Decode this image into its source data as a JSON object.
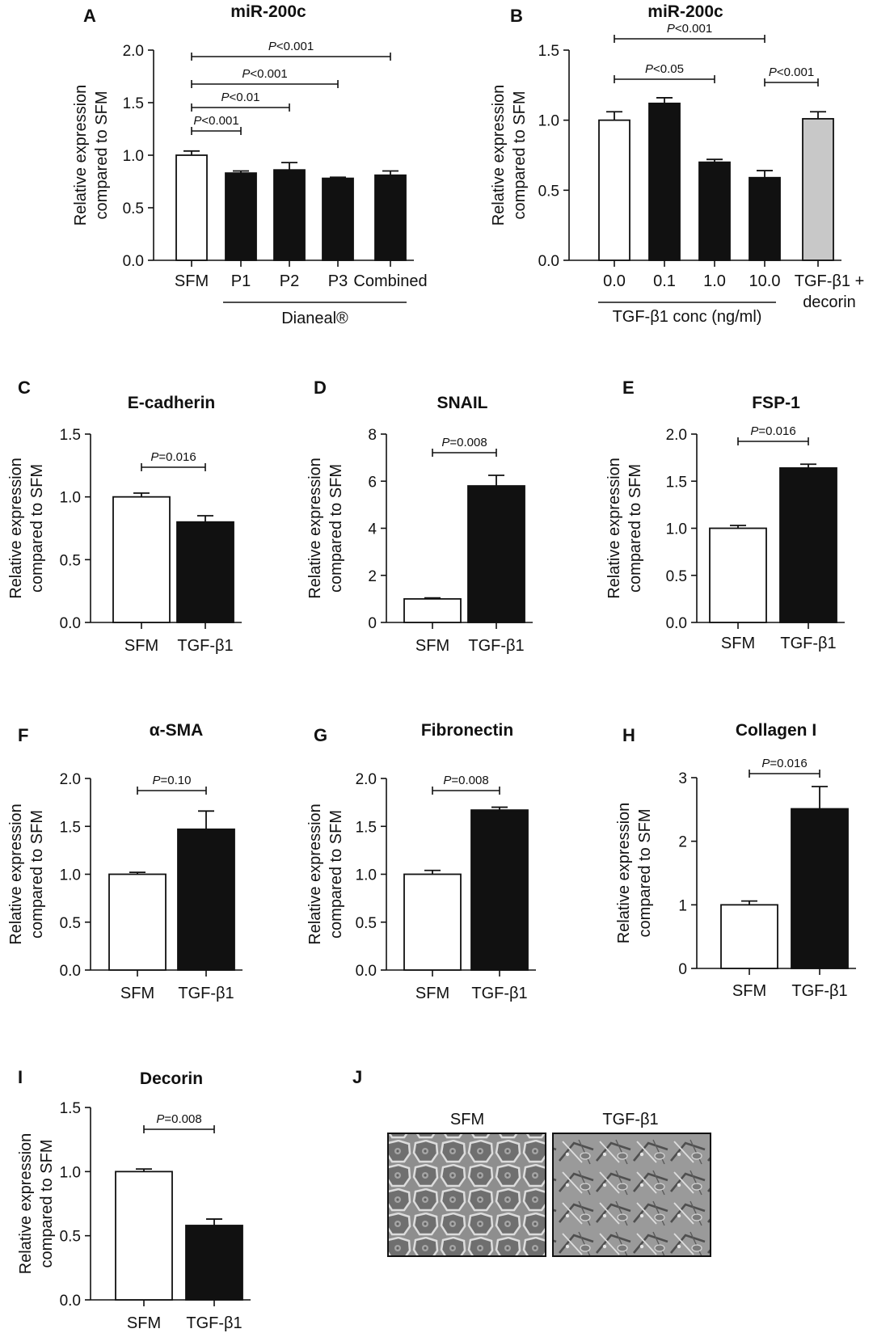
{
  "panels": [
    {
      "letter": "A",
      "chart_data": {
        "type": "bar",
        "title": "miR-200c",
        "ylabel": [
          "Relative expression",
          "compared to SFM"
        ],
        "ylim": [
          0,
          2.0
        ],
        "yticks": [
          "0.0",
          "0.5",
          "1.0",
          "1.5",
          "2.0"
        ],
        "categories": [
          "SFM",
          "P1",
          "P2",
          "P3",
          "Combined"
        ],
        "values": [
          1.0,
          0.83,
          0.86,
          0.78,
          0.81
        ],
        "errors": [
          0.04,
          0.02,
          0.07,
          0.01,
          0.04
        ],
        "colors": [
          "#ffffff",
          "#111111",
          "#111111",
          "#111111",
          "#111111"
        ],
        "group_label": "Dianeal®",
        "comparisons": [
          {
            "text": "P<0.001",
            "from": 0,
            "to": 1
          },
          {
            "text": "P<0.01",
            "from": 0,
            "to": 2
          },
          {
            "text": "P<0.001",
            "from": 0,
            "to": 3
          },
          {
            "text": "P<0.001",
            "from": 0,
            "to": 4
          }
        ]
      }
    },
    {
      "letter": "B",
      "chart_data": {
        "type": "bar",
        "title": "miR-200c",
        "ylabel": [
          "Relative expression",
          "compared to SFM"
        ],
        "ylim": [
          0,
          1.5
        ],
        "yticks": [
          "0.0",
          "0.5",
          "1.0",
          "1.5"
        ],
        "categories": [
          "0.0",
          "0.1",
          "1.0",
          "10.0",
          "TGF-β1 +|decorin"
        ],
        "values": [
          1.0,
          1.12,
          0.7,
          0.59,
          1.01
        ],
        "errors": [
          0.06,
          0.04,
          0.02,
          0.05,
          0.05
        ],
        "colors": [
          "#ffffff",
          "#111111",
          "#111111",
          "#111111",
          "#c8c8c8"
        ],
        "group_label": "TGF-β1 conc (ng/ml)",
        "comparisons": [
          {
            "text": "P<0.05",
            "from": 0,
            "to": 2
          },
          {
            "text": "P<0.001",
            "from": 0,
            "to": 3
          },
          {
            "text": "P<0.001",
            "from": 3,
            "to": 4
          }
        ]
      }
    },
    {
      "letter": "C",
      "chart_data": {
        "type": "bar",
        "title": "E-cadherin",
        "ylabel": [
          "Relative expression",
          "compared to SFM"
        ],
        "ylim": [
          0,
          1.5
        ],
        "yticks": [
          "0.0",
          "0.5",
          "1.0",
          "1.5"
        ],
        "categories": [
          "SFM",
          "TGF-β1"
        ],
        "values": [
          1.0,
          0.8
        ],
        "errors": [
          0.03,
          0.05
        ],
        "colors": [
          "#ffffff",
          "#111111"
        ],
        "comparisons": [
          {
            "text": "P=0.016",
            "from": 0,
            "to": 1
          }
        ]
      }
    },
    {
      "letter": "D",
      "chart_data": {
        "type": "bar",
        "title": "SNAIL",
        "ylabel": [
          "Relative expression",
          "compared to SFM"
        ],
        "ylim": [
          0,
          8
        ],
        "yticks": [
          "0",
          "2",
          "4",
          "6",
          "8"
        ],
        "categories": [
          "SFM",
          "TGF-β1"
        ],
        "values": [
          1.0,
          5.8
        ],
        "errors": [
          0.04,
          0.45
        ],
        "colors": [
          "#ffffff",
          "#111111"
        ],
        "comparisons": [
          {
            "text": "P=0.008",
            "from": 0,
            "to": 1
          }
        ]
      }
    },
    {
      "letter": "E",
      "chart_data": {
        "type": "bar",
        "title": "FSP-1",
        "ylabel": [
          "Relative expression",
          "compared to SFM"
        ],
        "ylim": [
          0,
          2.0
        ],
        "yticks": [
          "0.0",
          "0.5",
          "1.0",
          "1.5",
          "2.0"
        ],
        "categories": [
          "SFM",
          "TGF-β1"
        ],
        "values": [
          1.0,
          1.64
        ],
        "errors": [
          0.03,
          0.04
        ],
        "colors": [
          "#ffffff",
          "#111111"
        ],
        "comparisons": [
          {
            "text": "P=0.016",
            "from": 0,
            "to": 1
          }
        ]
      }
    },
    {
      "letter": "F",
      "chart_data": {
        "type": "bar",
        "title": "α-SMA",
        "ylabel": [
          "Relative expression",
          "compared to SFM"
        ],
        "ylim": [
          0,
          2.0
        ],
        "yticks": [
          "0.0",
          "0.5",
          "1.0",
          "1.5",
          "2.0"
        ],
        "categories": [
          "SFM",
          "TGF-β1"
        ],
        "values": [
          1.0,
          1.47
        ],
        "errors": [
          0.02,
          0.19
        ],
        "colors": [
          "#ffffff",
          "#111111"
        ],
        "comparisons": [
          {
            "text": "P=0.10",
            "from": 0,
            "to": 1
          }
        ]
      }
    },
    {
      "letter": "G",
      "chart_data": {
        "type": "bar",
        "title": "Fibronectin",
        "ylabel": [
          "Relative expression",
          "compared to SFM"
        ],
        "ylim": [
          0,
          2.0
        ],
        "yticks": [
          "0.0",
          "0.5",
          "1.0",
          "1.5",
          "2.0"
        ],
        "categories": [
          "SFM",
          "TGF-β1"
        ],
        "values": [
          1.0,
          1.67
        ],
        "errors": [
          0.04,
          0.03
        ],
        "colors": [
          "#ffffff",
          "#111111"
        ],
        "comparisons": [
          {
            "text": "P=0.008",
            "from": 0,
            "to": 1
          }
        ]
      }
    },
    {
      "letter": "H",
      "chart_data": {
        "type": "bar",
        "title": "Collagen I",
        "ylabel": [
          "Relative expression",
          "compared to SFM"
        ],
        "ylim": [
          0,
          3
        ],
        "yticks": [
          "0",
          "1",
          "2",
          "3"
        ],
        "categories": [
          "SFM",
          "TGF-β1"
        ],
        "values": [
          1.0,
          2.51
        ],
        "errors": [
          0.06,
          0.35
        ],
        "colors": [
          "#ffffff",
          "#111111"
        ],
        "comparisons": [
          {
            "text": "P=0.016",
            "from": 0,
            "to": 1
          }
        ]
      }
    },
    {
      "letter": "I",
      "chart_data": {
        "type": "bar",
        "title": "Decorin",
        "ylabel": [
          "Relative expression",
          "compared to SFM"
        ],
        "ylim": [
          0,
          1.5
        ],
        "yticks": [
          "0.0",
          "0.5",
          "1.0",
          "1.5"
        ],
        "categories": [
          "SFM",
          "TGF-β1"
        ],
        "values": [
          1.0,
          0.58
        ],
        "errors": [
          0.02,
          0.05
        ],
        "colors": [
          "#ffffff",
          "#111111"
        ],
        "comparisons": [
          {
            "text": "P=0.008",
            "from": 0,
            "to": 1
          }
        ]
      }
    }
  ],
  "images_panel": {
    "letter": "J",
    "labels": [
      "SFM",
      "TGF-β1"
    ]
  }
}
